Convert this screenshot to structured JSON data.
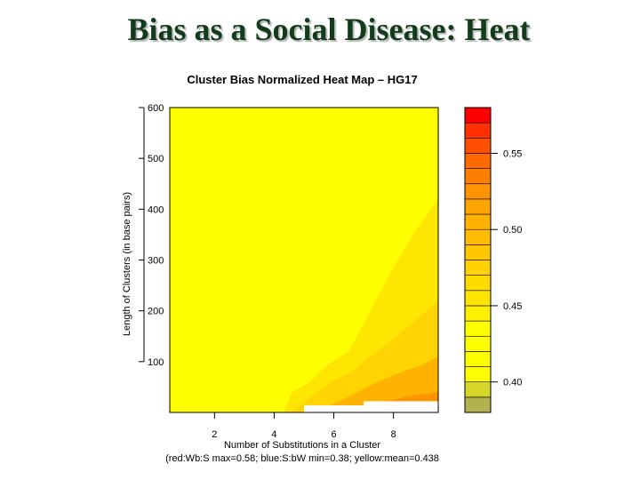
{
  "slide": {
    "title": "Bias as a Social Disease: Heat"
  },
  "colors": {
    "yellow": "#ffff00",
    "yellow_orange": "#ffe600",
    "light_orange": "#ffcc00",
    "orange": "#ffb300",
    "dark_orange": "#ff9900",
    "deep_orange": "#ff6600",
    "red": "#ff0000",
    "olive": "#b2b250"
  },
  "chart_data": {
    "type": "heatmap",
    "title": "Cluster Bias Normalized Heat Map – HG17",
    "xlabel": "Number of Substitutions in a Cluster",
    "ylabel": "Length of Clusters (in base pairs)",
    "caption": "(red:Wb:S max=0.58; blue:S:bW min=0.38; yellow:mean=0.438",
    "xlim": [
      0.5,
      9.5
    ],
    "ylim": [
      0,
      600
    ],
    "x_ticks": [
      "2",
      "4",
      "6",
      "8"
    ],
    "x_tick_values": [
      2,
      4,
      6,
      8
    ],
    "y_ticks": [
      "100",
      "200",
      "300",
      "400",
      "500",
      "600"
    ],
    "y_tick_values": [
      100,
      200,
      300,
      400,
      500,
      600
    ],
    "colorbar": {
      "range": [
        0.38,
        0.58
      ],
      "tick_labels": [
        "0.40",
        "0.45",
        "0.50",
        "0.55"
      ],
      "tick_values": [
        0.4,
        0.45,
        0.5,
        0.55
      ],
      "levels": [
        {
          "value": 0.385,
          "color": "#b2b250"
        },
        {
          "value": 0.395,
          "color": "#d6d628"
        },
        {
          "value": 0.405,
          "color": "#ffff00"
        },
        {
          "value": 0.415,
          "color": "#ffff00"
        },
        {
          "value": 0.425,
          "color": "#ffff00"
        },
        {
          "value": 0.435,
          "color": "#ffff00"
        },
        {
          "value": 0.445,
          "color": "#fff000"
        },
        {
          "value": 0.455,
          "color": "#ffe600"
        },
        {
          "value": 0.465,
          "color": "#ffdb00"
        },
        {
          "value": 0.475,
          "color": "#ffd100"
        },
        {
          "value": 0.485,
          "color": "#ffc700"
        },
        {
          "value": 0.495,
          "color": "#ffbc00"
        },
        {
          "value": 0.505,
          "color": "#ffb300"
        },
        {
          "value": 0.515,
          "color": "#ffa500"
        },
        {
          "value": 0.525,
          "color": "#ff9400"
        },
        {
          "value": 0.535,
          "color": "#ff7f00"
        },
        {
          "value": 0.545,
          "color": "#ff6a00"
        },
        {
          "value": 0.555,
          "color": "#ff5000"
        },
        {
          "value": 0.565,
          "color": "#ff3000"
        },
        {
          "value": 0.575,
          "color": "#ff0000"
        }
      ]
    },
    "background_value": 0.438,
    "contours": [
      {
        "value": 0.45,
        "color": "#ffe600",
        "points": [
          [
            4.3,
            0
          ],
          [
            4.6,
            40
          ],
          [
            5.2,
            60
          ],
          [
            5.8,
            95
          ],
          [
            6.5,
            120
          ],
          [
            7.0,
            175
          ],
          [
            7.4,
            220
          ],
          [
            8.0,
            285
          ],
          [
            8.7,
            355
          ],
          [
            9.5,
            420
          ],
          [
            9.5,
            0
          ]
        ]
      },
      {
        "value": 0.47,
        "color": "#ffd400",
        "points": [
          [
            4.6,
            0
          ],
          [
            5.2,
            30
          ],
          [
            5.9,
            60
          ],
          [
            6.6,
            80
          ],
          [
            7.2,
            110
          ],
          [
            7.9,
            140
          ],
          [
            8.6,
            175
          ],
          [
            9.5,
            220
          ],
          [
            9.5,
            0
          ]
        ]
      },
      {
        "value": 0.5,
        "color": "#ffb300",
        "points": [
          [
            5.4,
            0
          ],
          [
            6.1,
            20
          ],
          [
            6.8,
            40
          ],
          [
            7.4,
            58
          ],
          [
            8.2,
            78
          ],
          [
            9.0,
            95
          ],
          [
            9.5,
            110
          ],
          [
            9.5,
            0
          ]
        ]
      },
      {
        "value": 0.53,
        "color": "#ff9400",
        "points": [
          [
            6.4,
            0
          ],
          [
            7.1,
            12
          ],
          [
            7.8,
            22
          ],
          [
            8.5,
            32
          ],
          [
            9.5,
            40
          ],
          [
            9.5,
            0
          ]
        ]
      },
      {
        "value": 0.56,
        "color": "#ff6000",
        "points": [
          [
            8.2,
            0
          ],
          [
            8.8,
            10
          ],
          [
            9.5,
            18
          ],
          [
            9.5,
            0
          ]
        ]
      }
    ],
    "empty_regions": [
      {
        "points": [
          [
            5.0,
            0
          ],
          [
            5.0,
            14
          ],
          [
            7.0,
            14
          ],
          [
            7.0,
            22
          ],
          [
            9.5,
            22
          ],
          [
            9.5,
            0
          ]
        ]
      }
    ]
  }
}
